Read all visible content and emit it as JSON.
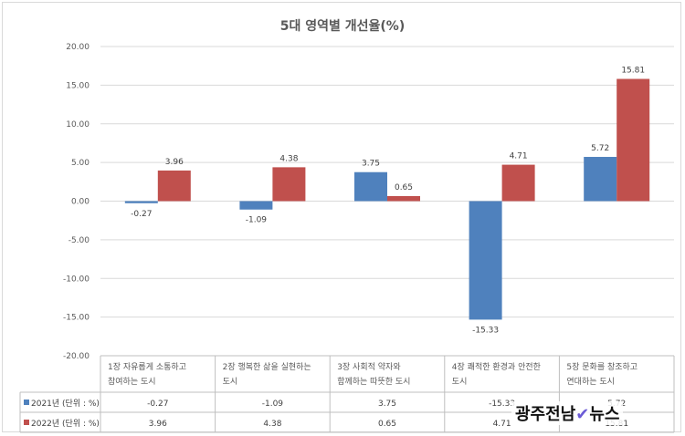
{
  "chart_data": {
    "type": "bar",
    "title": "5대 영역별 개선율(%)",
    "categories": [
      [
        "1장 자유롭게 소통하고",
        "참여하는 도시"
      ],
      [
        "2장 행복한 삶을 실현하는",
        "도시"
      ],
      [
        "3장 사회적 약자와",
        "함께하는 따뜻한 도시"
      ],
      [
        "4장 쾌적한 환경과 안전한",
        "도시"
      ],
      [
        "5장 문화를 창조하고",
        "연대하는 도시"
      ]
    ],
    "series": [
      {
        "name": "2021년 (단위 : %)",
        "color": "#4f81bd",
        "values": [
          -0.27,
          -1.09,
          3.75,
          -15.33,
          5.72
        ],
        "labels": [
          "-0.27",
          "-1.09",
          "3.75",
          "-15.33",
          "5.72"
        ]
      },
      {
        "name": "2022년 (단위 : %)",
        "color": "#c0504d",
        "values": [
          3.96,
          4.38,
          0.65,
          4.71,
          15.81
        ],
        "labels": [
          "3.96",
          "4.38",
          "0.65",
          "4.71",
          "15.81"
        ]
      }
    ],
    "ylim": [
      -20,
      20
    ],
    "yticks": [
      "20.00",
      "15.00",
      "10.00",
      "5.00",
      "0.00",
      "-5.00",
      "-10.00",
      "-15.00",
      "-20.00"
    ],
    "grid": true,
    "legend": "data table"
  },
  "watermark": {
    "text_main": "광주전남",
    "text_tail": "뉴스"
  }
}
